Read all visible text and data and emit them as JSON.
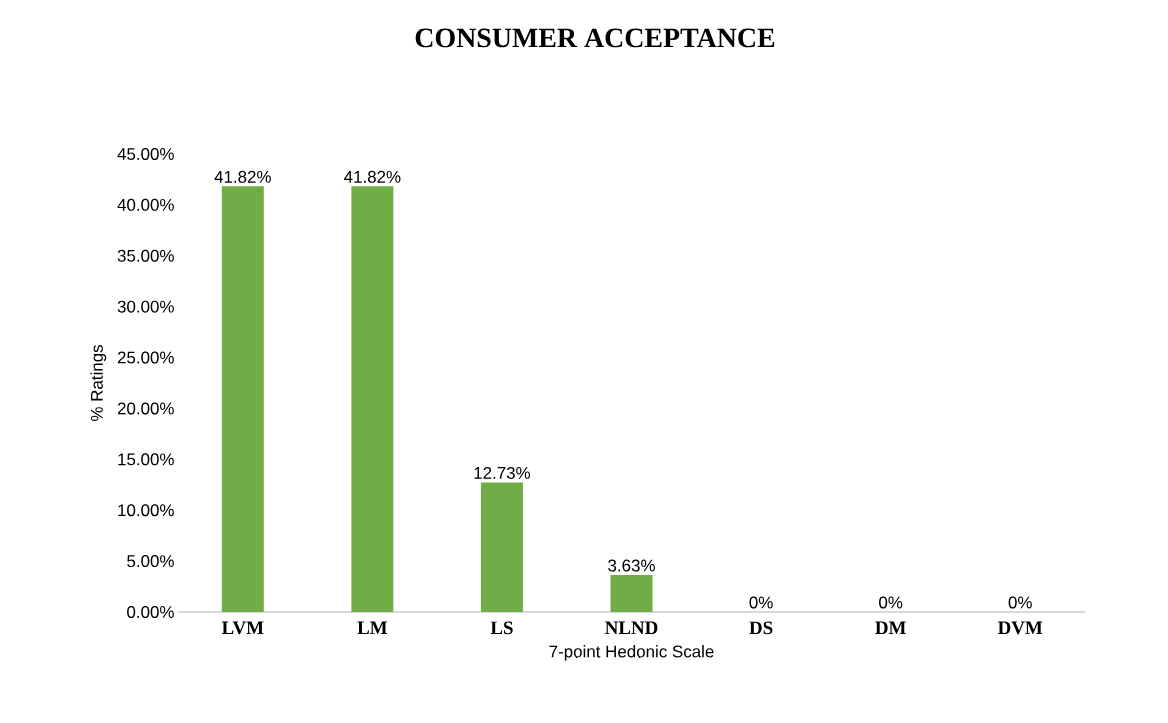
{
  "chart_data": {
    "type": "bar",
    "title": "CONSUMER ACCEPTANCE",
    "xlabel": "7-point Hedonic Scale",
    "ylabel": "% Ratings",
    "categories": [
      "LVM",
      "LM",
      "LS",
      "NLND",
      "DS",
      "DM",
      "DVM"
    ],
    "values": [
      41.82,
      41.82,
      12.73,
      3.63,
      0,
      0,
      0
    ],
    "value_labels": [
      "41.82%",
      "41.82%",
      "12.73%",
      "3.63%",
      "0%",
      "0%",
      "0%"
    ],
    "color": "#70ad47",
    "ylim": [
      0,
      45
    ],
    "yticks": [
      {
        "value": 0,
        "label": "0.00%"
      },
      {
        "value": 5,
        "label": "5.00%"
      },
      {
        "value": 10,
        "label": "10.00%"
      },
      {
        "value": 15,
        "label": "15.00%"
      },
      {
        "value": 20,
        "label": "20.00%"
      },
      {
        "value": 25,
        "label": "25.00%"
      },
      {
        "value": 30,
        "label": "30.00%"
      },
      {
        "value": 35,
        "label": "35.00%"
      },
      {
        "value": 40,
        "label": "40.00%"
      },
      {
        "value": 45,
        "label": "45.00%"
      }
    ],
    "grid": false
  }
}
